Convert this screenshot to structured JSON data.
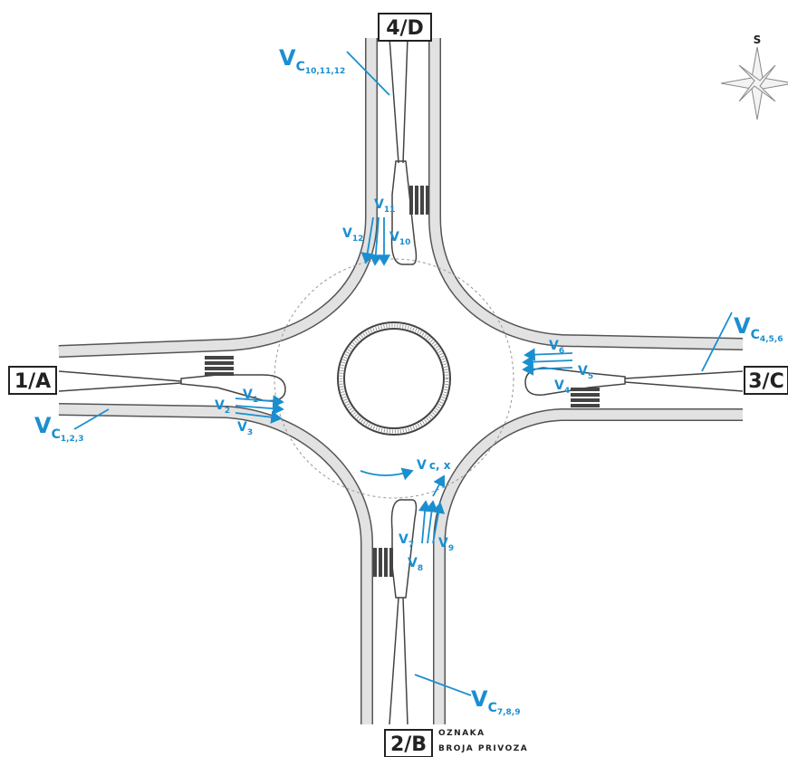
{
  "approach_labels": [
    {
      "label": "4/D"
    },
    {
      "label": "1/A"
    },
    {
      "label": "3/C"
    },
    {
      "label": "2/B"
    }
  ],
  "volume_labels": [
    {
      "base": "V",
      "sub": "C",
      "index": "10,11,12"
    },
    {
      "base": "V",
      "sub": "C",
      "index": "4,5,6"
    },
    {
      "base": "V",
      "sub": "C",
      "index": "1,2,3"
    },
    {
      "base": "V",
      "sub": "C",
      "index": "7,8,9"
    }
  ],
  "movement_labels": [
    {
      "base": "V",
      "sub": "11"
    },
    {
      "base": "V",
      "sub": "12"
    },
    {
      "base": "V",
      "sub": "10"
    },
    {
      "base": "V",
      "sub": "6"
    },
    {
      "base": "V",
      "sub": "5"
    },
    {
      "base": "V",
      "sub": "4"
    },
    {
      "base": "V",
      "sub": "1"
    },
    {
      "base": "V",
      "sub": "2"
    },
    {
      "base": "V",
      "sub": "3"
    },
    {
      "base": "V",
      "sub": "7"
    },
    {
      "base": "V",
      "sub": "9"
    },
    {
      "base": "V",
      "sub": "8"
    }
  ],
  "circulating_label": {
    "base": "V",
    "sub": "c, x"
  },
  "compass": {
    "label": "S"
  },
  "legend": {
    "line1": "OZNAKA",
    "line2": "BROJA PRIVOZA"
  }
}
